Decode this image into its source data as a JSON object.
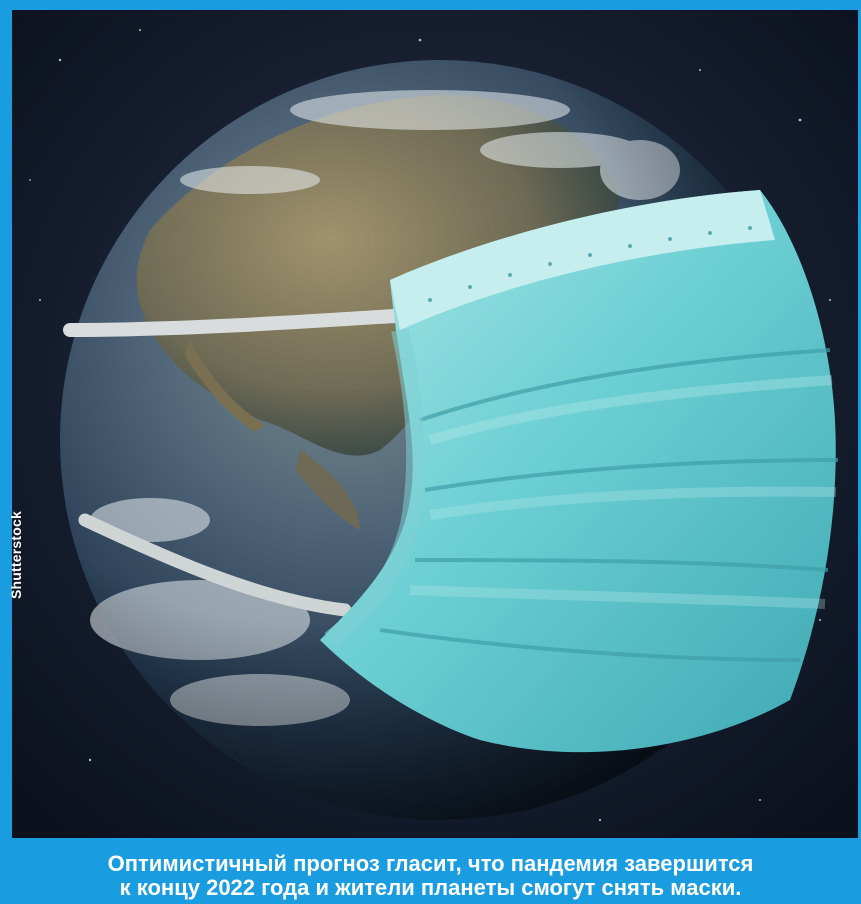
{
  "photo": {
    "subject": "earth-with-medical-mask",
    "colors": {
      "space": "#0f1727",
      "ocean": "#2b4d70",
      "land": "#8a7a5c",
      "mask": "#5fc4cc",
      "mask_light": "#9fe0e2",
      "strap": "#d8dcdc",
      "background": "#1a9de0"
    }
  },
  "credit": {
    "text": "Shutterstock"
  },
  "caption": {
    "line1": "Оптимистичный прогноз гласит, что пандемия завершится",
    "line2": "к концу 2022 года и жители планеты смогут снять маски."
  }
}
